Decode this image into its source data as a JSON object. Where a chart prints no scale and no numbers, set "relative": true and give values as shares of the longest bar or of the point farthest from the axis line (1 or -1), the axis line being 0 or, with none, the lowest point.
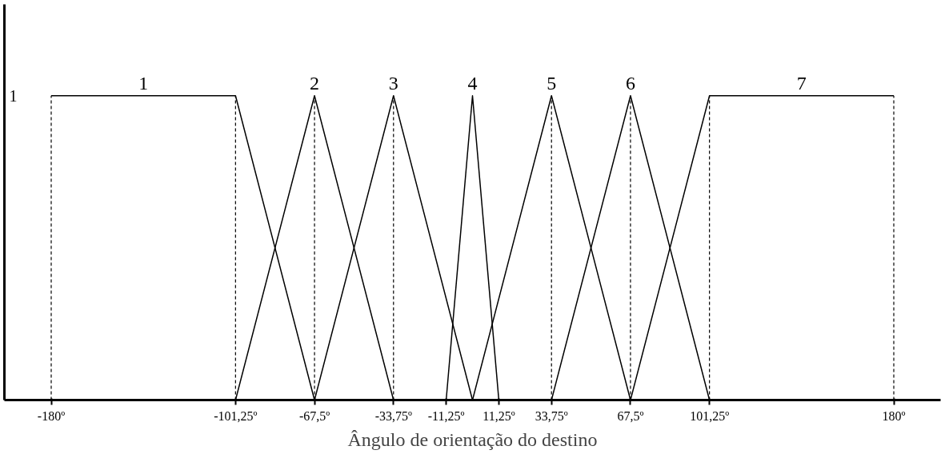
{
  "chart_data": {
    "type": "line",
    "xlabel": "Ângulo de orientação do destino",
    "xlim": [
      -200,
      200
    ],
    "relative": true,
    "annotations": [
      "1"
    ],
    "xticks": [
      {
        "value": -180,
        "label": "-180º"
      },
      {
        "value": -101.25,
        "label": "-101,25º"
      },
      {
        "value": -67.5,
        "label": "-67,5º"
      },
      {
        "value": -33.75,
        "label": "-33,75º"
      },
      {
        "value": -11.25,
        "label": "-11,25º"
      },
      {
        "value": 11.25,
        "label": "11,25º"
      },
      {
        "value": 33.75,
        "label": "33,75º"
      },
      {
        "value": 67.5,
        "label": "67,5º"
      },
      {
        "value": 101.25,
        "label": "101,25º"
      },
      {
        "value": 180,
        "label": "180º"
      }
    ],
    "grid": false,
    "line_style": "solid",
    "marker": "none",
    "ref_lines": [
      {
        "axis": "x",
        "value": -180,
        "color": "#000000",
        "line_style": "dashed"
      },
      {
        "axis": "x",
        "value": -101.25,
        "color": "#000000",
        "line_style": "dashed"
      },
      {
        "axis": "x",
        "value": -67.5,
        "color": "#000000",
        "line_style": "dashed"
      },
      {
        "axis": "x",
        "value": -33.75,
        "color": "#000000",
        "line_style": "dashed"
      },
      {
        "axis": "x",
        "value": 33.75,
        "color": "#000000",
        "line_style": "dashed"
      },
      {
        "axis": "x",
        "value": 67.5,
        "color": "#000000",
        "line_style": "dashed"
      },
      {
        "axis": "x",
        "value": 101.25,
        "color": "#000000",
        "line_style": "dashed"
      },
      {
        "axis": "x",
        "value": 180,
        "color": "#000000",
        "line_style": "dashed"
      }
    ],
    "series": [
      {
        "name": "1",
        "color": "#000000",
        "x": [
          -180,
          -101.25,
          -67.5
        ],
        "values": [
          1,
          1,
          0
        ]
      },
      {
        "name": "2",
        "color": "#000000",
        "x": [
          -101.25,
          -67.5,
          -33.75
        ],
        "values": [
          0,
          1,
          0
        ]
      },
      {
        "name": "3",
        "color": "#000000",
        "x": [
          -67.5,
          -33.75,
          0
        ],
        "values": [
          0,
          1,
          0
        ]
      },
      {
        "name": "4",
        "color": "#000000",
        "x": [
          -11.25,
          0,
          11.25
        ],
        "values": [
          0,
          1,
          0
        ]
      },
      {
        "name": "5",
        "color": "#000000",
        "x": [
          0,
          33.75,
          67.5
        ],
        "values": [
          0,
          1,
          0
        ]
      },
      {
        "name": "6",
        "color": "#000000",
        "x": [
          33.75,
          67.5,
          101.25
        ],
        "values": [
          0,
          1,
          0
        ]
      },
      {
        "name": "7",
        "color": "#000000",
        "x": [
          67.5,
          101.25,
          180
        ],
        "values": [
          0,
          1,
          1
        ]
      }
    ]
  }
}
